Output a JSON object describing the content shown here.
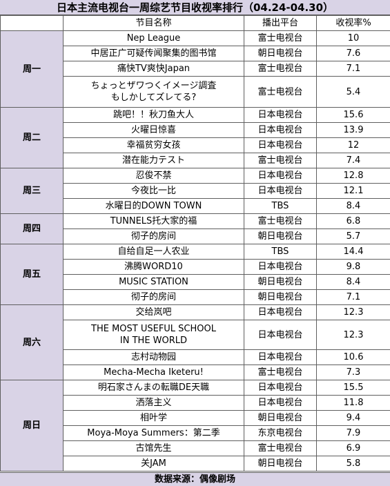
{
  "title": "日本主流电视台一周综艺节目收视率排行（04.24-04.30）",
  "headers": {
    "name": "节目名称",
    "platform": "播出平台",
    "rating": "收视率%"
  },
  "days": [
    {
      "label": "周一",
      "rows": [
        {
          "name": "Nep League",
          "platform": "富士电视台",
          "rating": "10"
        },
        {
          "name": "中居正广可疑传闻聚集的图书馆",
          "platform": "朝日电视台",
          "rating": "7.6"
        },
        {
          "name": "痛快TV爽快Japan",
          "platform": "富士电视台",
          "rating": "7.1"
        },
        {
          "name": "ちょっとザワつくイメージ調査",
          "name2": "もしかしてズレてる?",
          "platform": "富士电视台",
          "rating": "5.4"
        }
      ]
    },
    {
      "label": "周二",
      "rows": [
        {
          "name": "跳吧！！秋刀鱼大人",
          "platform": "日本电视台",
          "rating": "15.6"
        },
        {
          "name": "火曜日惊喜",
          "platform": "日本电视台",
          "rating": "13.9"
        },
        {
          "name": "幸福贫穷女孩",
          "platform": "日本电视台",
          "rating": "12"
        },
        {
          "name": "潜在能力テスト",
          "platform": "富士电视台",
          "rating": "7.4"
        }
      ]
    },
    {
      "label": "周三",
      "rows": [
        {
          "name": "忍俊不禁",
          "platform": "日本电视台",
          "rating": "12.8"
        },
        {
          "name": "今夜比一比",
          "platform": "日本电视台",
          "rating": "12.1"
        },
        {
          "name": "水曜日的DOWN TOWN",
          "platform": "TBS",
          "rating": "8.4"
        }
      ]
    },
    {
      "label": "周四",
      "rows": [
        {
          "name": "TUNNELS托大家的福",
          "platform": "富士电视台",
          "rating": "6.8"
        },
        {
          "name": "彻子的房间",
          "platform": "朝日电视台",
          "rating": "5.7"
        }
      ]
    },
    {
      "label": "周五",
      "rows": [
        {
          "name": "自给自足一人农业",
          "platform": "TBS",
          "rating": "14.4"
        },
        {
          "name": "沸腾WORD10",
          "platform": "日本电视台",
          "rating": "9.8"
        },
        {
          "name": "MUSIC STATION",
          "platform": "朝日电视台",
          "rating": "8.4"
        },
        {
          "name": "彻子的房间",
          "platform": "朝日电视台",
          "rating": "7.1"
        }
      ]
    },
    {
      "label": "周六",
      "rows": [
        {
          "name": "交给岚吧",
          "platform": "日本电视台",
          "rating": "12.3"
        },
        {
          "name": "THE MOST USEFUL SCHOOL",
          "name2": "IN THE WORLD",
          "platform": "日本电视台",
          "rating": "12.3"
        },
        {
          "name": "志村动物园",
          "platform": "日本电视台",
          "rating": "10.6"
        },
        {
          "name": "Mecha-Mecha Iketeru!",
          "platform": "富士电视台",
          "rating": "7.3"
        }
      ]
    },
    {
      "label": "周日",
      "rows": [
        {
          "name": "明石家さんまの転職DE天職",
          "platform": "日本电视台",
          "rating": "15.5"
        },
        {
          "name": "洒落主义",
          "platform": "日本电视台",
          "rating": "11.8"
        },
        {
          "name": "相叶学",
          "platform": "朝日电视台",
          "rating": "9.4"
        },
        {
          "name": "Moya-Moya Summers：第二季",
          "platform": "东京电视台",
          "rating": "7.9"
        },
        {
          "name": "古馆先生",
          "platform": "富士电视台",
          "rating": "6.9"
        },
        {
          "name": "关JAM",
          "platform": "朝日电视台",
          "rating": "5.8"
        }
      ]
    }
  ],
  "footer": "数据来源：偶像剧场",
  "colors": {
    "header_bg": "#d9d3e6",
    "border": "#5e5e5e"
  }
}
